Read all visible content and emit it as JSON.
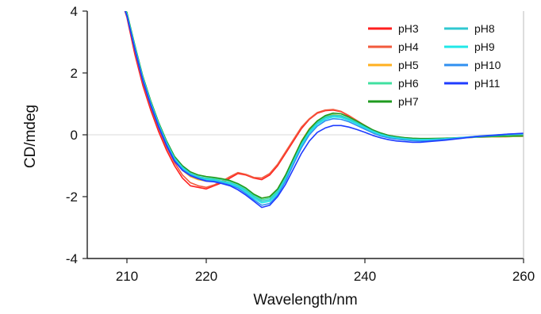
{
  "chart_data": {
    "type": "line",
    "xlabel": "Wavelength/nm",
    "ylabel": "CD/mdeg",
    "xlim": [
      205,
      260
    ],
    "ylim": [
      -4,
      4
    ],
    "xticks": [
      210,
      220,
      240,
      260
    ],
    "yticks": [
      -4,
      -2,
      0,
      2,
      4
    ],
    "zero_line": true,
    "grid": false,
    "legend_position": "top-right",
    "legend_columns": 2,
    "series": [
      {
        "name": "pH3",
        "color": "#ff1f1f",
        "x": [
          209.5,
          210,
          211,
          212,
          213,
          214,
          215,
          216,
          217,
          218,
          219,
          220,
          221,
          222,
          223,
          224,
          225,
          226,
          227,
          228,
          229,
          230,
          231,
          232,
          233,
          234,
          235,
          236,
          237,
          238,
          239,
          240,
          241,
          242,
          243,
          244,
          245,
          246,
          247,
          248,
          250,
          252,
          254,
          256,
          258,
          260
        ],
        "y": [
          4.2,
          3.8,
          2.6,
          1.6,
          0.8,
          0.1,
          -0.5,
          -1.0,
          -1.4,
          -1.65,
          -1.7,
          -1.75,
          -1.65,
          -1.55,
          -1.4,
          -1.25,
          -1.3,
          -1.4,
          -1.45,
          -1.3,
          -1.0,
          -0.6,
          -0.2,
          0.2,
          0.5,
          0.7,
          0.78,
          0.8,
          0.75,
          0.6,
          0.45,
          0.3,
          0.15,
          0.05,
          -0.02,
          -0.08,
          -0.12,
          -0.14,
          -0.15,
          -0.15,
          -0.12,
          -0.1,
          -0.08,
          -0.07,
          -0.06,
          -0.05
        ]
      },
      {
        "name": "pH4",
        "color": "#f25a3c",
        "x": [
          209.5,
          210,
          211,
          212,
          213,
          214,
          215,
          216,
          217,
          218,
          219,
          220,
          221,
          222,
          223,
          224,
          225,
          226,
          227,
          228,
          229,
          230,
          231,
          232,
          233,
          234,
          235,
          236,
          237,
          238,
          239,
          240,
          241,
          242,
          243,
          244,
          245,
          246,
          247,
          248,
          250,
          252,
          254,
          256,
          258,
          260
        ],
        "y": [
          4.2,
          3.9,
          2.7,
          1.7,
          0.9,
          0.2,
          -0.4,
          -0.9,
          -1.3,
          -1.55,
          -1.65,
          -1.7,
          -1.62,
          -1.5,
          -1.35,
          -1.22,
          -1.28,
          -1.38,
          -1.4,
          -1.25,
          -0.95,
          -0.55,
          -0.15,
          0.25,
          0.52,
          0.72,
          0.8,
          0.82,
          0.76,
          0.62,
          0.46,
          0.3,
          0.15,
          0.05,
          -0.02,
          -0.07,
          -0.1,
          -0.13,
          -0.14,
          -0.14,
          -0.12,
          -0.1,
          -0.08,
          -0.07,
          -0.06,
          -0.05
        ]
      },
      {
        "name": "pH5",
        "color": "#ffb020",
        "x": [
          209.5,
          210,
          211,
          212,
          213,
          214,
          215,
          216,
          217,
          218,
          219,
          220,
          221,
          222,
          223,
          224,
          225,
          226,
          227,
          228,
          229,
          230,
          231,
          232,
          233,
          234,
          235,
          236,
          237,
          238,
          239,
          240,
          241,
          242,
          243,
          244,
          245,
          246,
          247,
          248,
          250,
          252,
          254,
          256,
          258,
          260
        ],
        "y": [
          4.2,
          3.9,
          2.8,
          1.8,
          1.0,
          0.3,
          -0.3,
          -0.8,
          -1.15,
          -1.35,
          -1.45,
          -1.5,
          -1.5,
          -1.5,
          -1.55,
          -1.65,
          -1.8,
          -1.95,
          -2.05,
          -2.0,
          -1.75,
          -1.3,
          -0.75,
          -0.2,
          0.2,
          0.45,
          0.6,
          0.65,
          0.62,
          0.5,
          0.38,
          0.25,
          0.12,
          0.03,
          -0.04,
          -0.08,
          -0.11,
          -0.13,
          -0.14,
          -0.14,
          -0.12,
          -0.1,
          -0.08,
          -0.07,
          -0.06,
          -0.05
        ]
      },
      {
        "name": "pH6",
        "color": "#40e0a0",
        "x": [
          209.5,
          210,
          211,
          212,
          213,
          214,
          215,
          216,
          217,
          218,
          219,
          220,
          221,
          222,
          223,
          224,
          225,
          226,
          227,
          228,
          229,
          230,
          231,
          232,
          233,
          234,
          235,
          236,
          237,
          238,
          239,
          240,
          241,
          242,
          243,
          244,
          245,
          246,
          247,
          248,
          250,
          252,
          254,
          256,
          258,
          260
        ],
        "y": [
          4.2,
          3.95,
          2.85,
          1.85,
          1.05,
          0.35,
          -0.25,
          -0.75,
          -1.05,
          -1.25,
          -1.35,
          -1.4,
          -1.42,
          -1.45,
          -1.5,
          -1.6,
          -1.75,
          -1.95,
          -2.1,
          -2.05,
          -1.8,
          -1.35,
          -0.8,
          -0.25,
          0.15,
          0.42,
          0.58,
          0.64,
          0.62,
          0.52,
          0.4,
          0.27,
          0.14,
          0.04,
          -0.03,
          -0.07,
          -0.1,
          -0.12,
          -0.13,
          -0.13,
          -0.12,
          -0.1,
          -0.08,
          -0.06,
          -0.05,
          -0.04
        ]
      },
      {
        "name": "pH7",
        "color": "#1f9b1f",
        "x": [
          209.5,
          210,
          211,
          212,
          213,
          214,
          215,
          216,
          217,
          218,
          219,
          220,
          221,
          222,
          223,
          224,
          225,
          226,
          227,
          228,
          229,
          230,
          231,
          232,
          233,
          234,
          235,
          236,
          237,
          238,
          239,
          240,
          241,
          242,
          243,
          244,
          245,
          246,
          247,
          248,
          250,
          252,
          254,
          256,
          258,
          260
        ],
        "y": [
          4.2,
          3.95,
          2.9,
          1.9,
          1.1,
          0.4,
          -0.2,
          -0.7,
          -1.0,
          -1.2,
          -1.3,
          -1.35,
          -1.38,
          -1.42,
          -1.48,
          -1.58,
          -1.72,
          -1.92,
          -2.05,
          -2.0,
          -1.75,
          -1.3,
          -0.75,
          -0.22,
          0.18,
          0.45,
          0.62,
          0.7,
          0.68,
          0.57,
          0.44,
          0.3,
          0.16,
          0.06,
          -0.02,
          -0.06,
          -0.09,
          -0.11,
          -0.12,
          -0.12,
          -0.11,
          -0.09,
          -0.07,
          -0.05,
          -0.04,
          -0.03
        ]
      },
      {
        "name": "pH8",
        "color": "#30c8d0",
        "x": [
          209.5,
          210,
          211,
          212,
          213,
          214,
          215,
          216,
          217,
          218,
          219,
          220,
          221,
          222,
          223,
          224,
          225,
          226,
          227,
          228,
          229,
          230,
          231,
          232,
          233,
          234,
          235,
          236,
          237,
          238,
          239,
          240,
          241,
          242,
          243,
          244,
          245,
          246,
          247,
          248,
          250,
          252,
          254,
          256,
          258,
          260
        ],
        "y": [
          4.2,
          3.9,
          2.85,
          1.85,
          1.05,
          0.35,
          -0.25,
          -0.75,
          -1.05,
          -1.25,
          -1.35,
          -1.42,
          -1.45,
          -1.5,
          -1.55,
          -1.65,
          -1.8,
          -2.0,
          -2.15,
          -2.1,
          -1.85,
          -1.4,
          -0.85,
          -0.3,
          0.1,
          0.38,
          0.55,
          0.62,
          0.6,
          0.5,
          0.38,
          0.25,
          0.12,
          0.02,
          -0.05,
          -0.09,
          -0.12,
          -0.14,
          -0.15,
          -0.15,
          -0.13,
          -0.1,
          -0.07,
          -0.03,
          0.0,
          0.02
        ]
      },
      {
        "name": "pH9",
        "color": "#20e8e8",
        "x": [
          209.5,
          210,
          211,
          212,
          213,
          214,
          215,
          216,
          217,
          218,
          219,
          220,
          221,
          222,
          223,
          224,
          225,
          226,
          227,
          228,
          229,
          230,
          231,
          232,
          233,
          234,
          235,
          236,
          237,
          238,
          239,
          240,
          241,
          242,
          243,
          244,
          245,
          246,
          247,
          248,
          250,
          252,
          254,
          256,
          258,
          260
        ],
        "y": [
          4.2,
          3.9,
          2.85,
          1.85,
          1.05,
          0.35,
          -0.25,
          -0.78,
          -1.08,
          -1.28,
          -1.38,
          -1.45,
          -1.48,
          -1.52,
          -1.58,
          -1.68,
          -1.85,
          -2.05,
          -2.2,
          -2.15,
          -1.9,
          -1.45,
          -0.9,
          -0.35,
          0.06,
          0.34,
          0.5,
          0.58,
          0.56,
          0.47,
          0.35,
          0.22,
          0.1,
          0.0,
          -0.07,
          -0.11,
          -0.14,
          -0.16,
          -0.17,
          -0.16,
          -0.13,
          -0.09,
          -0.05,
          -0.02,
          0.01,
          0.03
        ]
      },
      {
        "name": "pH10",
        "color": "#3090f0",
        "x": [
          209.5,
          210,
          211,
          212,
          213,
          214,
          215,
          216,
          217,
          218,
          219,
          220,
          221,
          222,
          223,
          224,
          225,
          226,
          227,
          228,
          229,
          230,
          231,
          232,
          233,
          234,
          235,
          236,
          237,
          238,
          239,
          240,
          241,
          242,
          243,
          244,
          245,
          246,
          247,
          248,
          250,
          252,
          254,
          256,
          258,
          260
        ],
        "y": [
          4.2,
          3.85,
          2.8,
          1.8,
          1.0,
          0.3,
          -0.3,
          -0.82,
          -1.12,
          -1.3,
          -1.4,
          -1.48,
          -1.5,
          -1.55,
          -1.62,
          -1.72,
          -1.9,
          -2.1,
          -2.28,
          -2.22,
          -1.95,
          -1.5,
          -0.95,
          -0.42,
          0.0,
          0.28,
          0.45,
          0.52,
          0.5,
          0.42,
          0.3,
          0.18,
          0.06,
          -0.04,
          -0.1,
          -0.14,
          -0.17,
          -0.19,
          -0.2,
          -0.19,
          -0.15,
          -0.1,
          -0.05,
          -0.01,
          0.02,
          0.04
        ]
      },
      {
        "name": "pH11",
        "color": "#1f3cff",
        "x": [
          209.5,
          210,
          211,
          212,
          213,
          214,
          215,
          216,
          217,
          218,
          219,
          220,
          221,
          222,
          223,
          224,
          225,
          226,
          227,
          228,
          229,
          230,
          231,
          232,
          233,
          234,
          235,
          236,
          237,
          238,
          239,
          240,
          241,
          242,
          243,
          244,
          245,
          246,
          247,
          248,
          250,
          252,
          254,
          256,
          258,
          260
        ],
        "y": [
          4.2,
          3.85,
          2.75,
          1.75,
          0.95,
          0.25,
          -0.35,
          -0.85,
          -1.15,
          -1.32,
          -1.42,
          -1.5,
          -1.52,
          -1.58,
          -1.65,
          -1.78,
          -1.95,
          -2.15,
          -2.35,
          -2.28,
          -2.0,
          -1.6,
          -1.1,
          -0.6,
          -0.2,
          0.08,
          0.22,
          0.3,
          0.3,
          0.25,
          0.17,
          0.08,
          -0.02,
          -0.1,
          -0.16,
          -0.2,
          -0.22,
          -0.24,
          -0.24,
          -0.22,
          -0.18,
          -0.12,
          -0.06,
          -0.02,
          0.02,
          0.05
        ]
      }
    ]
  }
}
